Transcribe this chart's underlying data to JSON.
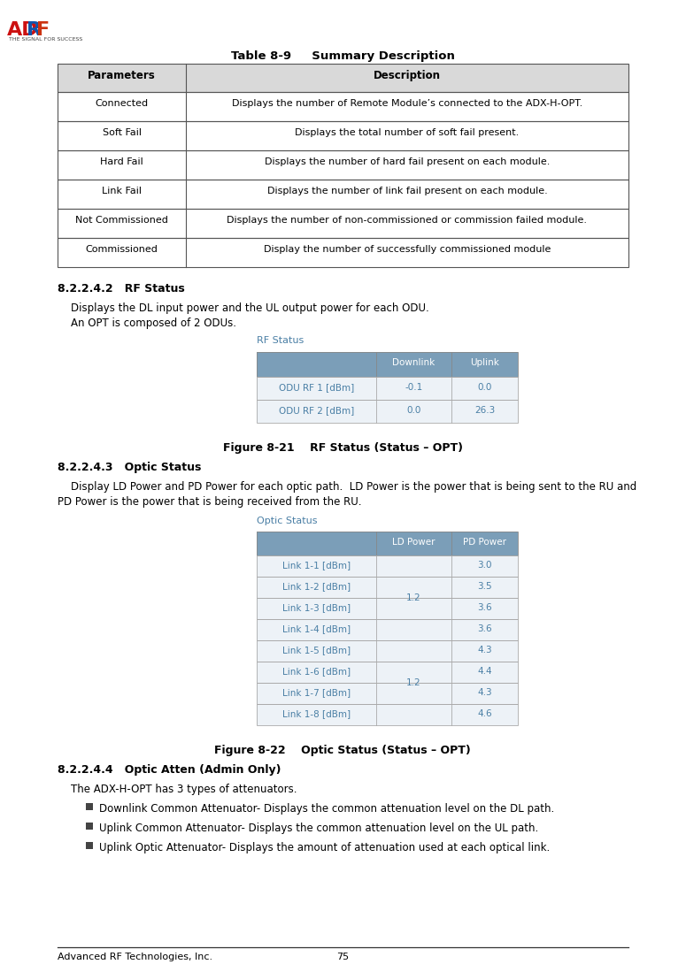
{
  "page_bg": "#ffffff",
  "footer_left": "Advanced RF Technologies, Inc.",
  "footer_center": "75",
  "table1_title": "Table 8-9     Summary Description",
  "table1_header": [
    "Parameters",
    "Description"
  ],
  "table1_header_bg": "#d9d9d9",
  "table1_rows": [
    [
      "Connected",
      "Displays the number of Remote Module’s connected to the ADX-H-OPT."
    ],
    [
      "Soft Fail",
      "Displays the total number of soft fail present."
    ],
    [
      "Hard Fail",
      "Displays the number of hard fail present on each module."
    ],
    [
      "Link Fail",
      "Displays the number of link fail present on each module."
    ],
    [
      "Not Commissioned",
      "Displays the number of non-commissioned or commission failed module."
    ],
    [
      "Commissioned",
      "Display the number of successfully commissioned module"
    ]
  ],
  "section1_heading": "8.2.2.4.2   RF Status",
  "section1_para1": "Displays the DL input power and the UL output power for each ODU.",
  "section1_para2": "An OPT is composed of 2 ODUs.",
  "rf_table_title": "RF Status",
  "rf_table_header": [
    "",
    "Downlink",
    "Uplink"
  ],
  "rf_table_header_bg": "#7b9eb8",
  "rf_table_rows": [
    [
      "ODU RF 1 [dBm]",
      "-0.1",
      "0.0"
    ],
    [
      "ODU RF 2 [dBm]",
      "0.0",
      "26.3"
    ]
  ],
  "rf_table_row_bg": "#edf2f7",
  "rf_table_text_color": "#4a7fa5",
  "figure1_caption": "Figure 8-21    RF Status (Status – OPT)",
  "section2_heading": "8.2.2.4.3   Optic Status",
  "section2_para1": "Display LD Power and PD Power for each optic path.  LD Power is the power that is being sent to the RU and",
  "section2_para2": "PD Power is the power that is being received from the RU.",
  "optic_table_title": "Optic Status",
  "optic_table_header": [
    "",
    "LD Power",
    "PD Power"
  ],
  "optic_table_header_bg": "#7b9eb8",
  "optic_table_rows": [
    [
      "Link 1-1 [dBm]",
      "1.2",
      "3.0"
    ],
    [
      "Link 1-2 [dBm]",
      "1.2",
      "3.5"
    ],
    [
      "Link 1-3 [dBm]",
      "1.2",
      "3.6"
    ],
    [
      "Link 1-4 [dBm]",
      "1.2",
      "3.6"
    ],
    [
      "Link 1-5 [dBm]",
      "1.2",
      "4.3"
    ],
    [
      "Link 1-6 [dBm]",
      "1.2",
      "4.4"
    ],
    [
      "Link 1-7 [dBm]",
      "1.2",
      "4.3"
    ],
    [
      "Link 1-8 [dBm]",
      "1.2",
      "4.6"
    ]
  ],
  "optic_table_text_color": "#4a7fa5",
  "optic_table_row_bg": "#edf2f7",
  "figure2_caption": "Figure 8-22    Optic Status (Status – OPT)",
  "section3_heading": "8.2.2.4.4   Optic Atten (Admin Only)",
  "section3_para": "The ADX-H-OPT has 3 types of attenuators.",
  "section3_bullets": [
    "Downlink Common Attenuator- Displays the common attenuation level on the DL path.",
    "Uplink Common Attenuator- Displays the common attenuation level on the UL path.",
    "Uplink Optic Attenuator- Displays the amount of attenuation used at each optical link."
  ]
}
